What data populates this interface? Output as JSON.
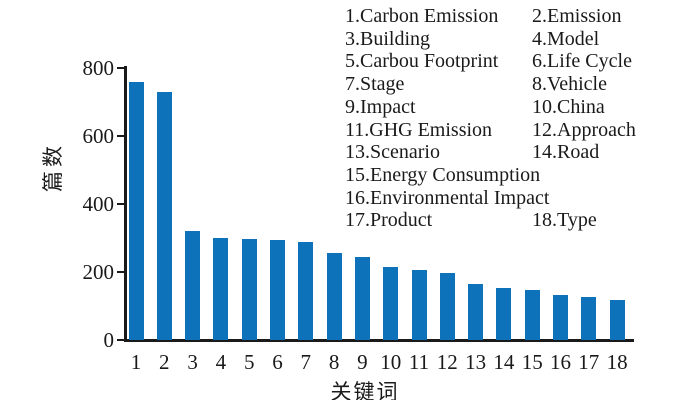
{
  "chart_data": {
    "type": "bar",
    "title": "",
    "xlabel": "关键词",
    "ylabel": "篇数",
    "ylim": [
      0,
      800
    ],
    "yticks": [
      0,
      200,
      400,
      600,
      800
    ],
    "grid": false,
    "legend_position": "top-right",
    "bar_color": "#0e72ba",
    "axis_color": "#1a1a1a",
    "categories": [
      "1",
      "2",
      "3",
      "4",
      "5",
      "6",
      "7",
      "8",
      "9",
      "10",
      "11",
      "12",
      "13",
      "14",
      "15",
      "16",
      "17",
      "18"
    ],
    "values": [
      760,
      730,
      322,
      300,
      298,
      295,
      289,
      256,
      244,
      215,
      207,
      198,
      166,
      153,
      146,
      133,
      126,
      119
    ],
    "keywords": [
      "Carbon Emission",
      "Emission",
      "Building",
      "Model",
      "Carbou Footprint",
      "Life Cycle",
      "Stage",
      "Vehicle",
      "Impact",
      "China",
      "GHG Emission",
      "Approach",
      "Scenario",
      "Road",
      "Energy Consumption",
      "Environmental Impact",
      "Product",
      "Type"
    ],
    "legend_rows": [
      [
        "1.Carbon Emission",
        "2.Emission"
      ],
      [
        "3.Building",
        "4.Model"
      ],
      [
        "5.Carbou Footprint",
        "6.Life Cycle"
      ],
      [
        "7.Stage",
        "8.Vehicle"
      ],
      [
        "9.Impact",
        "10.China"
      ],
      [
        "11.GHG Emission",
        "12.Approach"
      ],
      [
        "13.Scenario",
        "14.Road"
      ],
      [
        "15.Energy Consumption",
        ""
      ],
      [
        "16.Environmental Impact",
        ""
      ],
      [
        "17.Product",
        "18.Type"
      ]
    ]
  }
}
